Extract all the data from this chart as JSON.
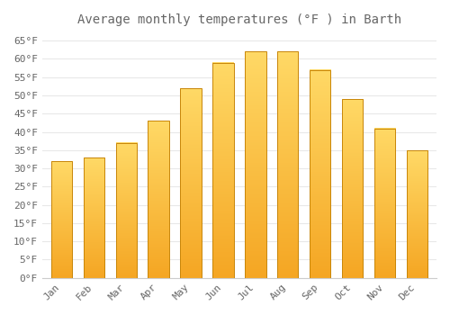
{
  "title": "Average monthly temperatures (°F ) in Barth",
  "months": [
    "Jan",
    "Feb",
    "Mar",
    "Apr",
    "May",
    "Jun",
    "Jul",
    "Aug",
    "Sep",
    "Oct",
    "Nov",
    "Dec"
  ],
  "values": [
    32,
    33,
    37,
    43,
    52,
    59,
    62,
    62,
    57,
    49,
    41,
    35
  ],
  "bar_color_top": "#FFD966",
  "bar_color_bottom": "#F5A623",
  "bar_edge_color": "#C8860A",
  "background_color": "#FFFFFF",
  "grid_color": "#E8E8E8",
  "text_color": "#666666",
  "ylim": [
    0,
    67
  ],
  "yticks": [
    0,
    5,
    10,
    15,
    20,
    25,
    30,
    35,
    40,
    45,
    50,
    55,
    60,
    65
  ],
  "title_fontsize": 10,
  "tick_fontsize": 8
}
